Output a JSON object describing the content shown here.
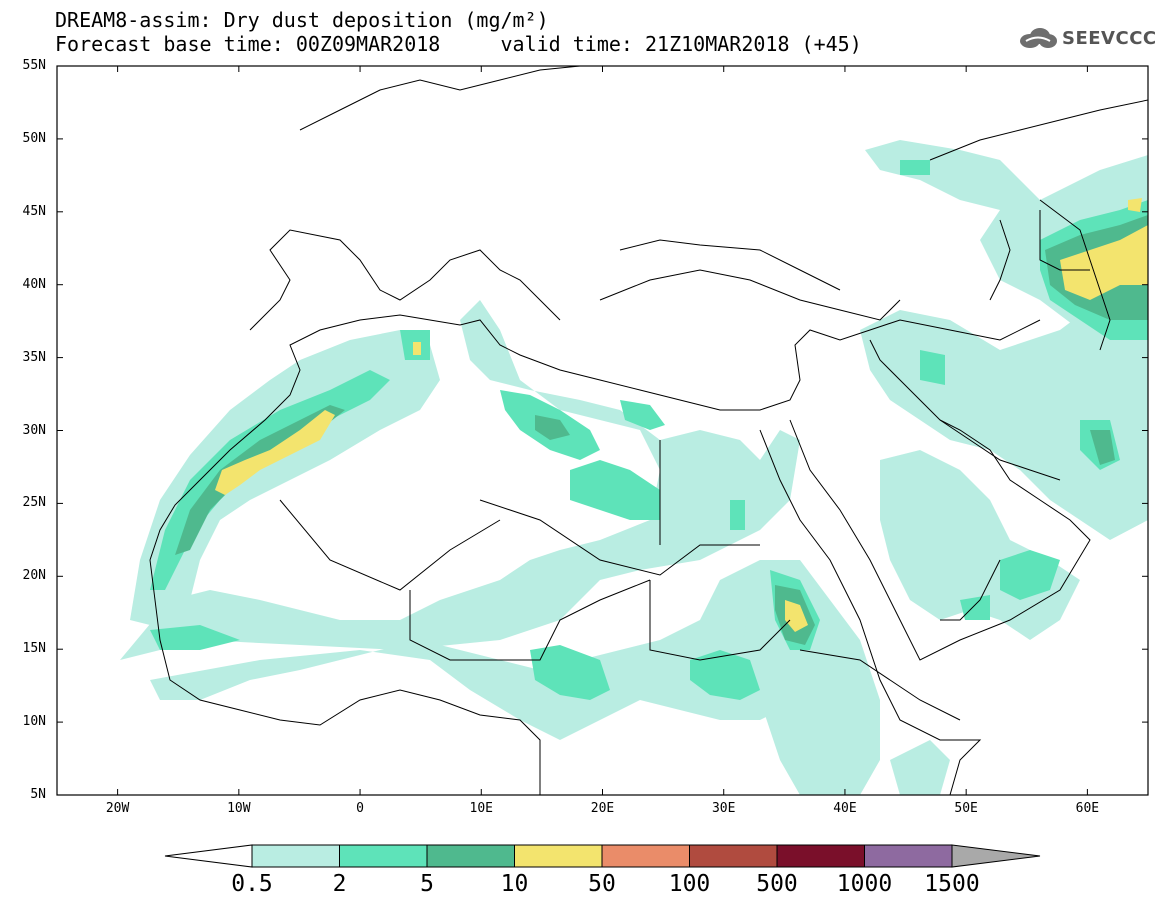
{
  "header": {
    "title_line1": "DREAM8-assim: Dry dust deposition (mg/m²)",
    "title_line2": "Forecast base time: 00Z09MAR2018     valid time: 21Z10MAR2018 (+45)",
    "logo_text": "SEEVCCC"
  },
  "map": {
    "lon_range": [
      -25,
      65
    ],
    "lat_range": [
      5,
      55
    ],
    "lat_ticks": [
      "55N",
      "50N",
      "45N",
      "40N",
      "35N",
      "30N",
      "25N",
      "20N",
      "15N",
      "10N",
      "5N"
    ],
    "lon_ticks": [
      "20W",
      "10W",
      "0",
      "10E",
      "20E",
      "30E",
      "40E",
      "50E",
      "60E"
    ],
    "field": "dry dust deposition"
  },
  "colorbar": {
    "levels": [
      "0.5",
      "2",
      "5",
      "10",
      "50",
      "100",
      "500",
      "1000",
      "1500"
    ],
    "colors": [
      "#b9ede2",
      "#5ee3b9",
      "#4fb98e",
      "#f3e46e",
      "#ea8c69",
      "#b04b3f",
      "#7a0f2a",
      "#8e6aa0"
    ],
    "low_arrow_color": "#ffffff",
    "high_arrow_color": "#a9a9a9"
  }
}
